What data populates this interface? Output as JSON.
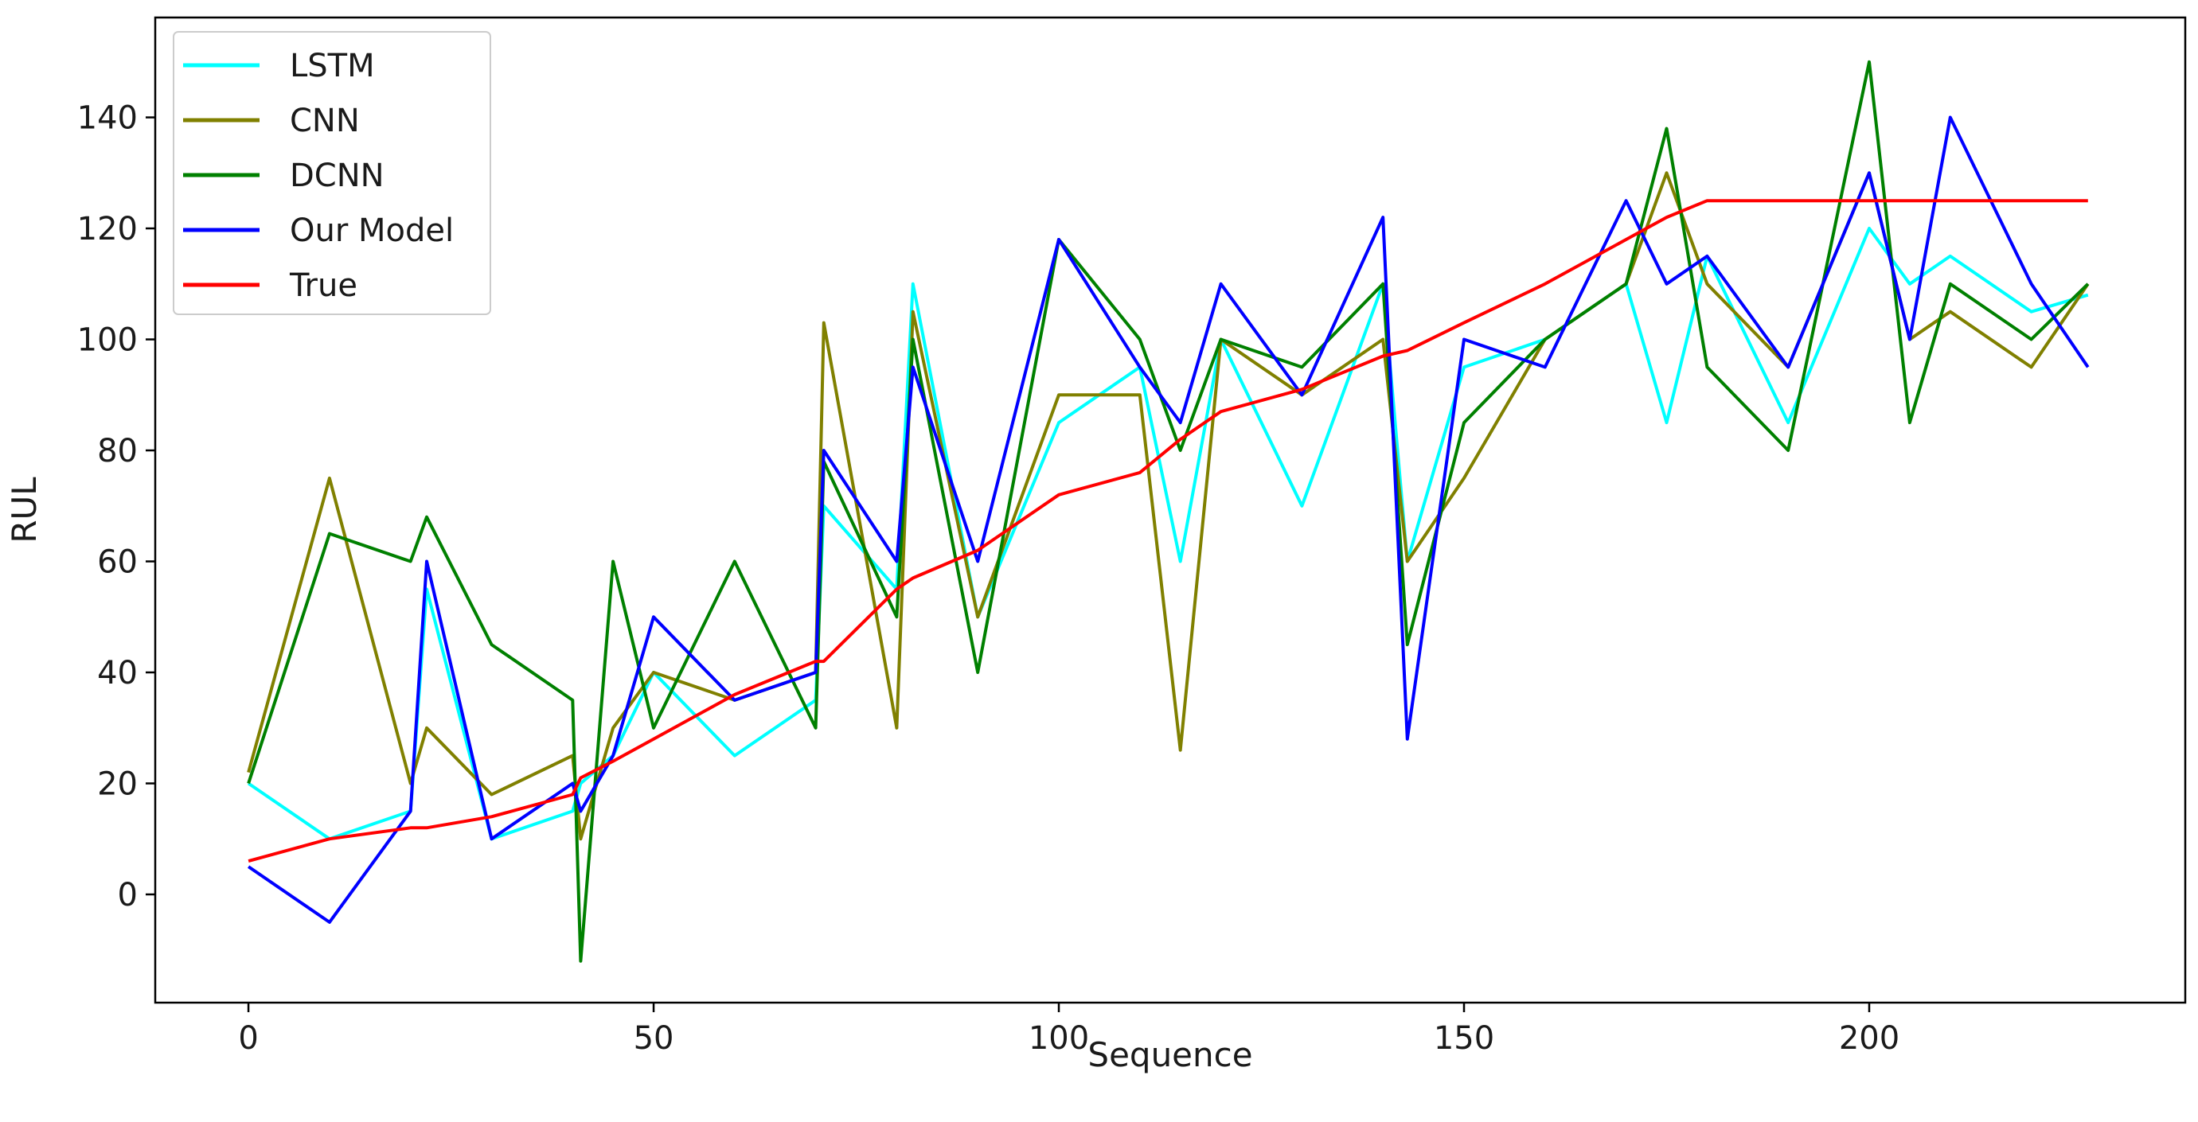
{
  "chart_data": {
    "type": "line",
    "title": "",
    "xlabel": "Sequence",
    "ylabel": "RUL",
    "xlim": [
      -11.5,
      239
    ],
    "ylim": [
      -19.5,
      158
    ],
    "x_ticks": [
      0,
      50,
      100,
      150,
      200
    ],
    "y_ticks": [
      0,
      20,
      40,
      60,
      80,
      100,
      120,
      140
    ],
    "grid": false,
    "legend_position": "top-left",
    "x": [
      0,
      10,
      20,
      22,
      30,
      40,
      41,
      45,
      50,
      60,
      70,
      71,
      80,
      82,
      90,
      100,
      110,
      115,
      120,
      130,
      140,
      143,
      150,
      160,
      170,
      175,
      180,
      190,
      200,
      205,
      210,
      220,
      227
    ],
    "series": [
      {
        "name": "LSTM",
        "color": "#00ffff",
        "values": [
          20,
          10,
          15,
          55,
          10,
          15,
          20,
          25,
          40,
          25,
          35,
          70,
          55,
          110,
          50,
          85,
          95,
          60,
          100,
          70,
          110,
          60,
          95,
          100,
          110,
          85,
          115,
          85,
          120,
          110,
          115,
          105,
          108
        ]
      },
      {
        "name": "CNN",
        "color": "#808000",
        "values": [
          22,
          75,
          20,
          30,
          18,
          25,
          10,
          30,
          40,
          35,
          40,
          103,
          30,
          105,
          50,
          90,
          90,
          26,
          100,
          90,
          100,
          60,
          75,
          100,
          110,
          130,
          110,
          95,
          130,
          100,
          105,
          95,
          110
        ]
      },
      {
        "name": "DCNN",
        "color": "#008000",
        "values": [
          20,
          65,
          60,
          68,
          45,
          35,
          -12,
          60,
          30,
          60,
          30,
          78,
          50,
          100,
          40,
          118,
          100,
          80,
          100,
          95,
          110,
          45,
          85,
          100,
          110,
          138,
          95,
          80,
          150,
          85,
          110,
          100,
          110
        ]
      },
      {
        "name": "Our Model",
        "color": "#0000ff",
        "values": [
          5,
          -5,
          15,
          60,
          10,
          20,
          15,
          25,
          50,
          35,
          40,
          80,
          60,
          95,
          60,
          118,
          95,
          85,
          110,
          90,
          122,
          28,
          100,
          95,
          125,
          110,
          115,
          95,
          130,
          100,
          140,
          110,
          95
        ]
      },
      {
        "name": "True",
        "color": "#ff0000",
        "values": [
          6,
          10,
          12,
          12,
          14,
          18,
          21,
          24,
          28,
          36,
          42,
          42,
          55,
          57,
          62,
          72,
          76,
          82,
          87,
          91,
          97,
          98,
          103,
          110,
          118,
          122,
          125,
          125,
          125,
          125,
          125,
          125,
          125
        ]
      }
    ]
  }
}
